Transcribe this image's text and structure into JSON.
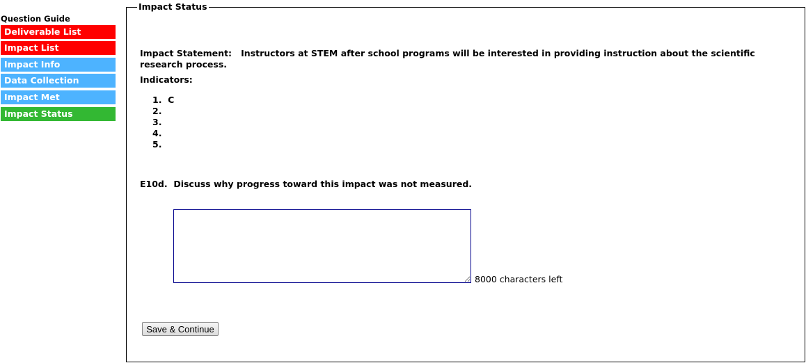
{
  "sidebar": {
    "title": "Question Guide",
    "items": [
      {
        "label": "Deliverable List",
        "color": "#ff0000"
      },
      {
        "label": "Impact List",
        "color": "#ff0000"
      },
      {
        "label": "Impact Info",
        "color": "#4db3ff"
      },
      {
        "label": "Data Collection",
        "color": "#4db3ff"
      },
      {
        "label": "Impact Met",
        "color": "#4db3ff"
      },
      {
        "label": "Impact Status",
        "color": "#33b833",
        "active": true
      }
    ]
  },
  "main": {
    "legend": "Impact Status",
    "statement_label": "Impact Statement:",
    "statement": "Instructors at STEM after school programs will be interested in providing instruction about the scientific research process.",
    "indicators_label": "Indicators:",
    "indicators": [
      {
        "num": "1.",
        "text": "C"
      },
      {
        "num": "2.",
        "text": ""
      },
      {
        "num": "3.",
        "text": ""
      },
      {
        "num": "4.",
        "text": ""
      },
      {
        "num": "5.",
        "text": ""
      }
    ],
    "question": "E10d.  Discuss why progress toward this impact was not measured.",
    "answer": "",
    "chars_left": "8000 characters left",
    "save_label": "Save & Continue"
  }
}
